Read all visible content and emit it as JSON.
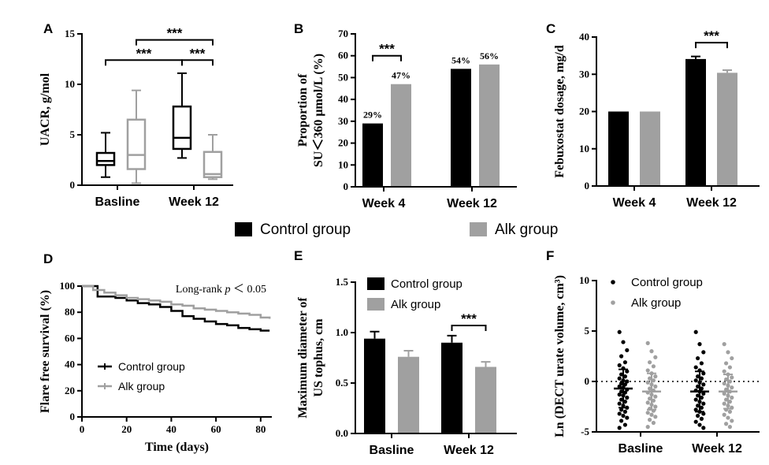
{
  "colors": {
    "control": "#000000",
    "alk": "#a0a0a0",
    "axis": "#000000"
  },
  "global_legend": {
    "items": [
      {
        "label": "Control group",
        "series": "control"
      },
      {
        "label": "Alk group",
        "series": "alk"
      }
    ]
  },
  "chart_data": [
    {
      "id": "A",
      "panel_label": "A",
      "type": "box",
      "ylabel": "UACR, g/mol",
      "ylim": [
        0,
        15
      ],
      "yticks": [
        "0",
        "5",
        "10",
        "15"
      ],
      "categories": [
        "Basline",
        "Week 12"
      ],
      "series": [
        {
          "name": "Control group",
          "key": "control",
          "boxes": [
            {
              "min": 0.8,
              "q1": 2.0,
              "median": 2.4,
              "q3": 3.2,
              "max": 5.2
            },
            {
              "min": 2.7,
              "q1": 3.6,
              "median": 4.7,
              "q3": 7.8,
              "max": 11.1
            }
          ]
        },
        {
          "name": "Alk group",
          "key": "alk",
          "boxes": [
            {
              "min": 0.2,
              "q1": 1.6,
              "median": 3.0,
              "q3": 6.5,
              "max": 9.4
            },
            {
              "min": 0.6,
              "q1": 0.8,
              "median": 1.1,
              "q3": 3.3,
              "max": 5.0
            }
          ]
        }
      ],
      "significance": [
        {
          "from": [
            0,
            "control"
          ],
          "to": [
            1,
            "control"
          ],
          "level": 12.4,
          "label": "***"
        },
        {
          "from": [
            0,
            "alk"
          ],
          "to": [
            1,
            "alk"
          ],
          "level": 14.4,
          "label": "***"
        },
        {
          "from": [
            1,
            "control"
          ],
          "to": [
            1,
            "alk"
          ],
          "level": 12.4,
          "label": "***"
        }
      ]
    },
    {
      "id": "B",
      "panel_label": "B",
      "type": "bar",
      "ylabel": [
        "Proportion of",
        "SU＜360 μmol/L (%)"
      ],
      "ylim": [
        0,
        70
      ],
      "yticks": [
        "0",
        "10",
        "20",
        "30",
        "40",
        "50",
        "60",
        "70"
      ],
      "categories": [
        "Week 4",
        "Week 12"
      ],
      "series": [
        {
          "name": "Control group",
          "key": "control",
          "values": [
            29,
            54
          ],
          "labels": [
            "29%",
            "54%"
          ]
        },
        {
          "name": "Alk group",
          "key": "alk",
          "values": [
            47,
            56
          ],
          "labels": [
            "47%",
            "56%"
          ]
        }
      ],
      "significance": [
        {
          "from": [
            0,
            "control"
          ],
          "to": [
            0,
            "alk"
          ],
          "level": 60,
          "label": "***"
        }
      ]
    },
    {
      "id": "C",
      "panel_label": "C",
      "type": "bar",
      "ylabel": "Febuxostat dosage, mg/d",
      "ylim": [
        0,
        40
      ],
      "yticks": [
        "0",
        "10",
        "20",
        "30",
        "40"
      ],
      "categories": [
        "Week 4",
        "Week 12"
      ],
      "series": [
        {
          "name": "Control group",
          "key": "control",
          "values": [
            20,
            34.1
          ],
          "errors": [
            0,
            0.7
          ]
        },
        {
          "name": "Alk group",
          "key": "alk",
          "values": [
            20,
            30.4
          ],
          "errors": [
            0,
            0.7
          ]
        }
      ],
      "significance": [
        {
          "from": [
            1,
            "control"
          ],
          "to": [
            1,
            "alk"
          ],
          "level": 38.5,
          "label": "***"
        }
      ]
    },
    {
      "id": "D",
      "panel_label": "D",
      "type": "line",
      "xlabel": "Time (days)",
      "ylabel": "Flare free survival (%)",
      "xlim": [
        0,
        85
      ],
      "ylim": [
        0,
        100
      ],
      "xticks": [
        "0",
        "20",
        "40",
        "60",
        "80"
      ],
      "yticks": [
        "0",
        "20",
        "40",
        "60",
        "80",
        "100"
      ],
      "annotation": {
        "prefix": "Long-rank ",
        "var": "p",
        "suffix": " ＜ 0.05"
      },
      "legend": [
        {
          "label": "Control group",
          "series": "control"
        },
        {
          "label": "Alk group",
          "series": "alk"
        }
      ],
      "series": [
        {
          "name": "Control group",
          "key": "control",
          "x": [
            0,
            7,
            7,
            15,
            20,
            25,
            30,
            35,
            40,
            45,
            50,
            55,
            60,
            65,
            70,
            75,
            80,
            84
          ],
          "y": [
            100,
            100,
            92,
            91,
            89,
            87,
            86,
            84,
            81,
            77,
            75,
            73,
            71,
            70,
            68,
            67,
            66,
            66
          ]
        },
        {
          "name": "Alk group",
          "key": "alk",
          "x": [
            0,
            5,
            5,
            10,
            15,
            20,
            25,
            30,
            35,
            40,
            45,
            50,
            55,
            60,
            65,
            70,
            75,
            80,
            84
          ],
          "y": [
            100,
            100,
            97,
            95,
            93,
            91,
            90,
            89,
            88,
            86,
            85,
            83,
            82,
            81,
            80,
            79,
            78,
            76,
            75
          ]
        }
      ]
    },
    {
      "id": "E",
      "panel_label": "E",
      "type": "bar",
      "ylabel": [
        "Maximum diameter of",
        "US tophus, cm"
      ],
      "ylim": [
        0,
        1.5
      ],
      "yticks": [
        "0.0",
        "0.5",
        "1.0",
        "1.5"
      ],
      "categories": [
        "Basline",
        "Week 12"
      ],
      "legend": [
        {
          "label": "Control group",
          "series": "control"
        },
        {
          "label": "Alk group",
          "series": "alk"
        }
      ],
      "series": [
        {
          "name": "Control group",
          "key": "control",
          "values": [
            0.94,
            0.9
          ],
          "errors": [
            0.07,
            0.07
          ]
        },
        {
          "name": "Alk group",
          "key": "alk",
          "values": [
            0.76,
            0.66
          ],
          "errors": [
            0.06,
            0.05
          ]
        }
      ],
      "significance": [
        {
          "from": [
            1,
            "control"
          ],
          "to": [
            1,
            "alk"
          ],
          "level": 1.07,
          "label": "***"
        }
      ]
    },
    {
      "id": "F",
      "panel_label": "F",
      "type": "scatter",
      "ylabel": "Ln (DECT urate volume, cm³)",
      "ylim": [
        -5,
        10
      ],
      "yticks": [
        "-5",
        "0",
        "5",
        "10"
      ],
      "reference_line": 0,
      "categories": [
        "Basline",
        "Week 12"
      ],
      "legend": [
        {
          "label": "Control group",
          "series": "control"
        },
        {
          "label": "Alk group",
          "series": "alk"
        }
      ],
      "series": [
        {
          "name": "Control group",
          "key": "control",
          "mean": [
            -0.7,
            -1.0
          ],
          "sd": [
            1.9,
            2.0
          ],
          "points": [
            [
              4.9,
              3.9,
              3.1,
              2.5,
              1.9,
              1.6,
              1.3,
              1.0,
              0.7,
              0.5,
              0.3,
              0.1,
              0.0,
              -0.2,
              -0.3,
              -0.5,
              -0.6,
              -0.8,
              -1.0,
              -1.1,
              -1.3,
              -1.4,
              -1.6,
              -1.8,
              -2.0,
              -2.2,
              -2.4,
              -2.6,
              -2.8,
              -3.0,
              -3.2,
              -3.4,
              -3.6,
              -3.9,
              -4.3,
              -4.6
            ],
            [
              4.9,
              3.7,
              2.9,
              2.3,
              1.8,
              1.4,
              1.1,
              0.8,
              0.5,
              0.3,
              0.1,
              -0.1,
              -0.3,
              -0.5,
              -0.7,
              -0.9,
              -1.0,
              -1.2,
              -1.4,
              -1.6,
              -1.8,
              -2.0,
              -2.2,
              -2.4,
              -2.6,
              -2.8,
              -3.0,
              -3.2,
              -3.4,
              -3.7,
              -4.0,
              -4.3,
              -4.6
            ]
          ]
        },
        {
          "name": "Alk group",
          "key": "alk",
          "mean": [
            -1.0,
            -1.0
          ],
          "sd": [
            1.8,
            1.7
          ],
          "points": [
            [
              3.8,
              3.0,
              2.4,
              1.9,
              1.5,
              1.1,
              0.8,
              0.5,
              0.3,
              0.1,
              -0.1,
              -0.3,
              -0.5,
              -0.7,
              -0.9,
              -1.1,
              -1.3,
              -1.5,
              -1.7,
              -1.9,
              -2.1,
              -2.3,
              -2.5,
              -2.7,
              -2.9,
              -3.1,
              -3.3,
              -3.5,
              -3.8,
              -4.1,
              -4.5
            ],
            [
              3.7,
              2.9,
              2.3,
              1.8,
              1.4,
              1.0,
              0.7,
              0.4,
              0.2,
              0.0,
              -0.2,
              -0.4,
              -0.6,
              -0.8,
              -1.0,
              -1.2,
              -1.4,
              -1.6,
              -1.8,
              -2.0,
              -2.2,
              -2.4,
              -2.6,
              -2.8,
              -3.0,
              -3.3,
              -3.6,
              -3.9,
              -4.2,
              -4.5
            ]
          ]
        }
      ]
    }
  ]
}
